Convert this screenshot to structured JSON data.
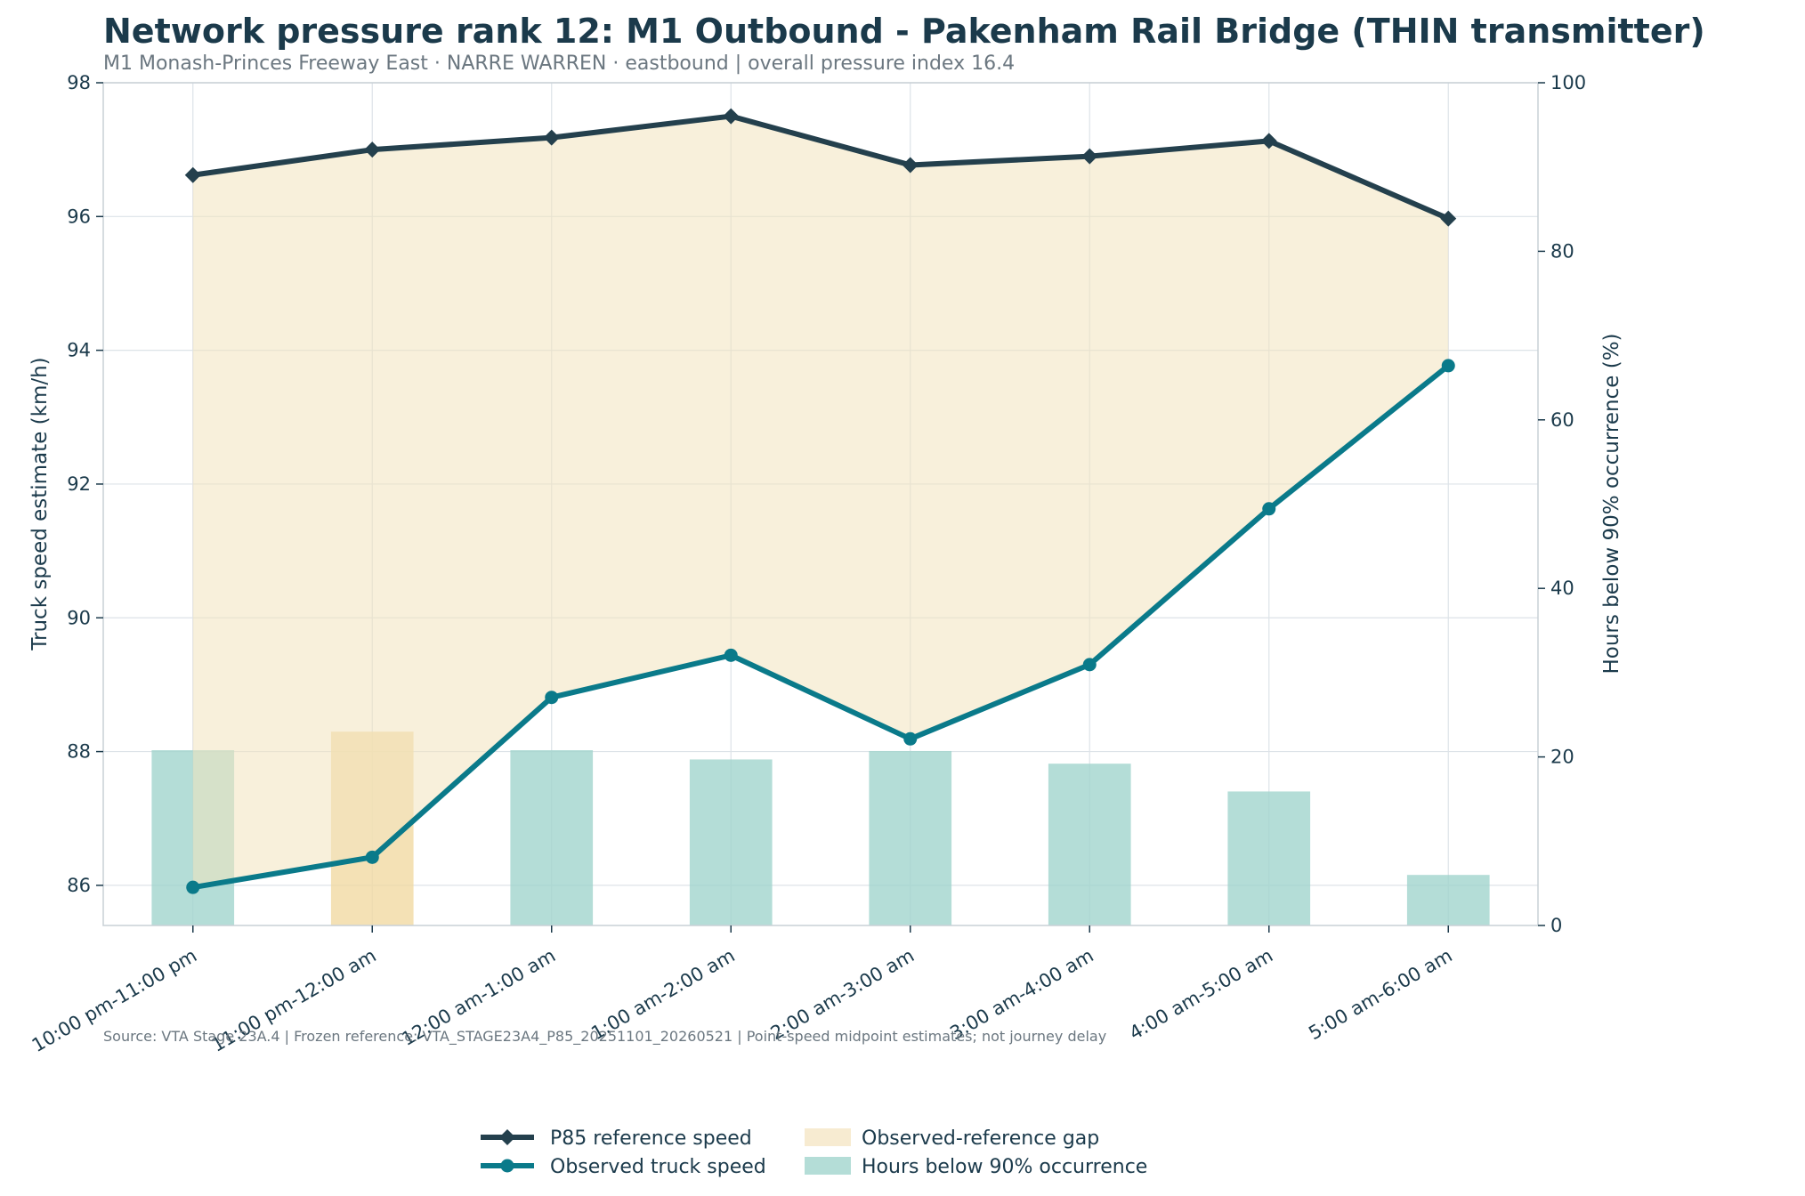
{
  "colors": {
    "reference": "#24404d",
    "observed": "#0a7a8a",
    "gap_fill": "#f3e3bd",
    "bar_normal": "#9fd3cc",
    "bar_highlight": "#f1d9a0",
    "text": "#1b3a4b",
    "muted": "#6b7780",
    "grid": "#dde3e8",
    "spine": "#c8d0d6"
  },
  "chart_data": {
    "type": "line",
    "title": "Network pressure rank 12: M1 Outbound - Pakenham Rail Bridge (THIN transmitter)",
    "subtitle": "M1 Monash-Princes Freeway East · NARRE WARREN · eastbound | overall pressure index 16.4",
    "source_note": "Source: VTA Stage 23A.4 | Frozen reference: VTA_STAGE23A4_P85_20251101_20260521 | Point-speed midpoint estimates; not journey delay",
    "ylabel_left": "Truck speed estimate (km/h)",
    "ylabel_right": "Hours below 90% occurrence (%)",
    "categories": [
      "10:00 pm-11:00 pm",
      "11:00 pm-12:00 am",
      "12:00 am-1:00 am",
      "1:00 am-2:00 am",
      "2:00 am-3:00 am",
      "3:00 am-4:00 am",
      "4:00 am-5:00 am",
      "5:00 am-6:00 am"
    ],
    "ylim_left": [
      85.4,
      98.0
    ],
    "yticks_left": [
      "86",
      "88",
      "90",
      "92",
      "94",
      "96",
      "98"
    ],
    "ylim_right": [
      0,
      100
    ],
    "yticks_right": [
      "0",
      "20",
      "40",
      "60",
      "80",
      "100"
    ],
    "series": [
      {
        "name": "P85 reference speed",
        "axis": "left",
        "marker": "diamond",
        "values": [
          96.62,
          97.0,
          97.18,
          97.5,
          96.77,
          96.9,
          97.13,
          95.97
        ]
      },
      {
        "name": "Observed truck speed",
        "axis": "left",
        "marker": "circle",
        "values": [
          85.97,
          86.42,
          88.81,
          89.44,
          88.19,
          89.3,
          91.63,
          93.77
        ]
      },
      {
        "name": "Hours below 90% occurrence",
        "axis": "right",
        "kind": "bar",
        "values": [
          20.8,
          23.0,
          20.8,
          19.7,
          20.7,
          19.2,
          15.9,
          6.0
        ],
        "highlight_index": 1
      }
    ],
    "gap_label": "Observed-reference gap",
    "legend": [
      "P85 reference speed",
      "Observed truck speed",
      "Observed-reference gap",
      "Hours below 90% occurrence"
    ],
    "legend_position": "bottom-center",
    "grid": true
  }
}
